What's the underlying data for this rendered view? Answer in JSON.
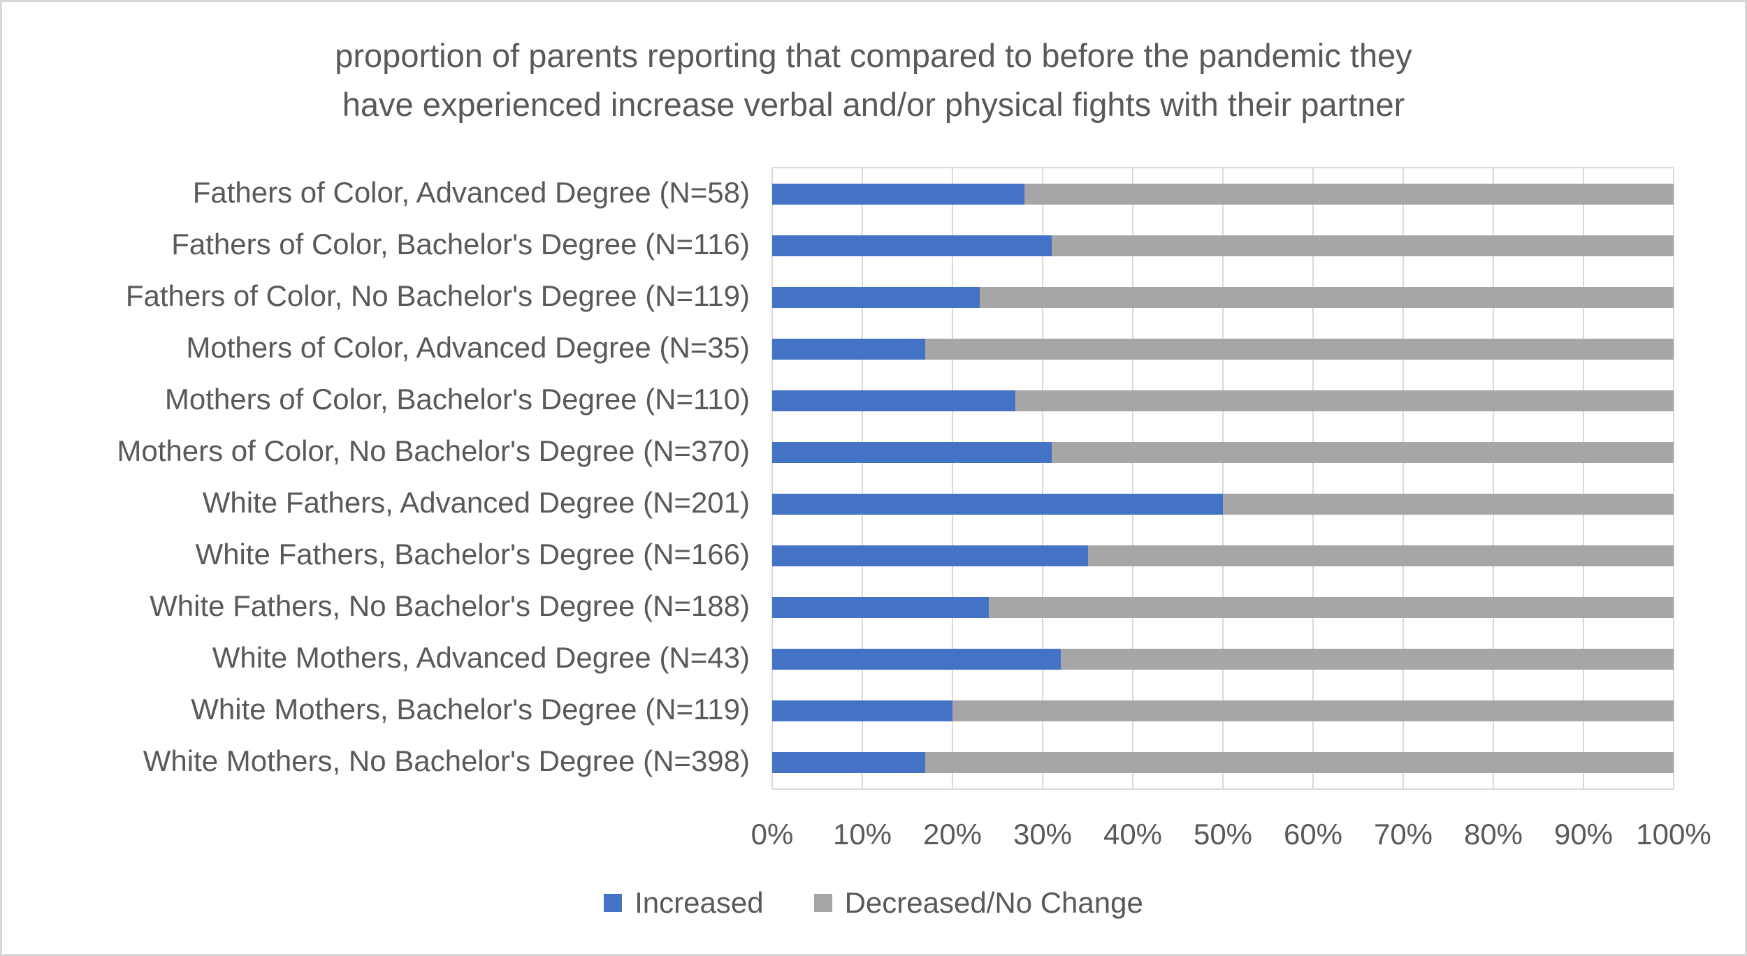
{
  "chart_data": {
    "type": "bar",
    "orientation": "horizontal-stacked",
    "title": "proportion of parents reporting that compared to before the pandemic they have experienced increase verbal and/or physical fights with their partner",
    "title_lines": [
      "proportion of parents reporting that compared to before the pandemic they",
      "have experienced increase verbal and/or physical fights with their partner"
    ],
    "categories": [
      "Fathers of Color, Advanced Degree (N=58)",
      "Fathers of Color, Bachelor's Degree (N=116)",
      "Fathers of Color, No Bachelor's Degree (N=119)",
      "Mothers of Color, Advanced Degree (N=35)",
      "Mothers of Color, Bachelor's Degree (N=110)",
      "Mothers of Color, No Bachelor's Degree (N=370)",
      "White Fathers, Advanced Degree (N=201)",
      "White Fathers, Bachelor's Degree (N=166)",
      "White Fathers, No Bachelor's Degree (N=188)",
      "White Mothers, Advanced Degree (N=43)",
      "White Mothers, Bachelor's Degree (N=119)",
      "White Mothers, No Bachelor's Degree (N=398)"
    ],
    "series": [
      {
        "name": "Increased",
        "color": "#4472C4",
        "values": [
          28,
          31,
          23,
          17,
          27,
          31,
          50,
          35,
          24,
          32,
          20,
          17
        ]
      },
      {
        "name": "Decreased/No Change",
        "color": "#A6A6A6",
        "values": [
          72,
          69,
          77,
          83,
          73,
          69,
          50,
          65,
          76,
          68,
          80,
          83
        ]
      }
    ],
    "x_ticks": [
      "0%",
      "10%",
      "20%",
      "30%",
      "40%",
      "50%",
      "60%",
      "70%",
      "80%",
      "90%",
      "100%"
    ],
    "xlim": [
      0,
      100
    ],
    "grid": true,
    "legend_position": "bottom"
  },
  "colors": {
    "text": "#595959",
    "gridline": "#D9D9D9",
    "frame_border": "#D8D8D8",
    "background": "#FFFFFF",
    "increased": "#4472C4",
    "decreased_no_change": "#A6A6A6"
  }
}
